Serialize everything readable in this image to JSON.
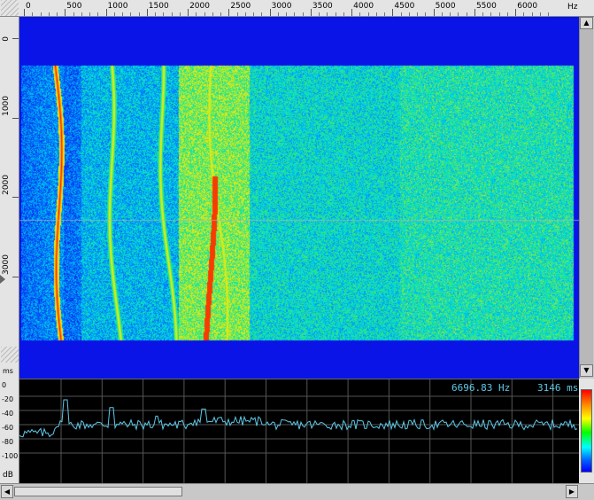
{
  "freq_ruler": {
    "unit": "Hz",
    "ticks": [
      "0",
      "500",
      "1000",
      "1500",
      "2000",
      "2500",
      "3000",
      "3500",
      "4000",
      "4500",
      "5000",
      "5500",
      "6000"
    ]
  },
  "time_ruler": {
    "unit": "ms",
    "ticks": [
      "0",
      "1000",
      "2000",
      "3000"
    ]
  },
  "spectrum": {
    "db_ticks": [
      "0",
      "-20",
      "-40",
      "-60",
      "-80",
      "-100"
    ],
    "unit": "dB",
    "cursor_frequency": "6696.83 Hz",
    "cursor_time": "3146 ms"
  },
  "colors": {
    "background": "#0a14e6",
    "hot": "#ff0000",
    "spectrum_line": "#5ec8e8",
    "grid": "#555555"
  },
  "scrollbars": {
    "up": "▲",
    "down": "▼",
    "left": "◀",
    "right": "▶"
  }
}
